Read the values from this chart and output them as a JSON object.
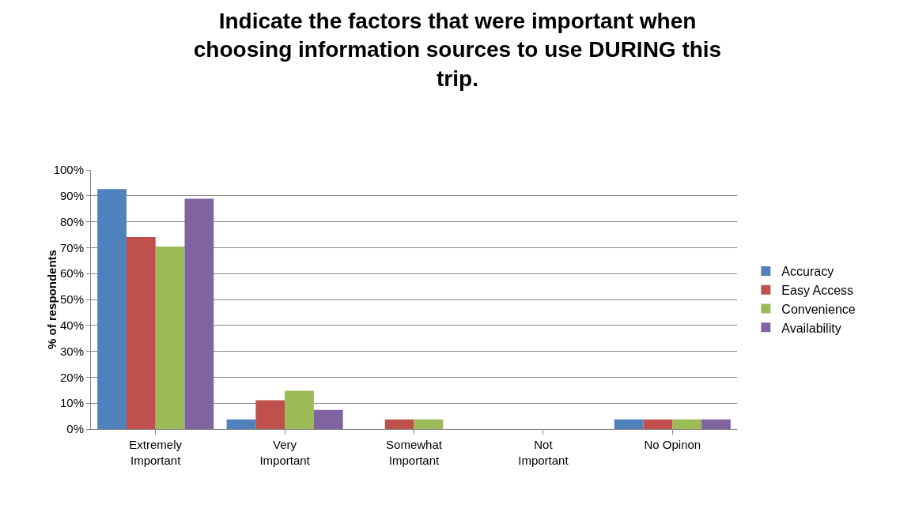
{
  "chart_data": {
    "type": "bar",
    "title": "Indicate the factors that were important when choosing information sources to use DURING this trip.",
    "ylabel": "% of respondents",
    "categories": [
      "Extremely Important",
      "Very Important",
      "Somewhat Important",
      "Not Important",
      "No Opinon"
    ],
    "series": [
      {
        "name": "Accuracy",
        "color": "#4f81bd",
        "values": [
          92.6,
          3.7,
          0,
          0,
          3.7
        ]
      },
      {
        "name": "Easy Access",
        "color": "#c0504d",
        "values": [
          74.1,
          11.1,
          3.7,
          0,
          3.7
        ]
      },
      {
        "name": "Convenience",
        "color": "#9bbb59",
        "values": [
          70.4,
          14.8,
          3.7,
          0,
          3.7
        ]
      },
      {
        "name": "Availability",
        "color": "#8064a2",
        "values": [
          88.9,
          7.4,
          0,
          0,
          3.7
        ]
      }
    ],
    "ylim": [
      0,
      100
    ],
    "yticks": [
      {
        "value": 0,
        "label": "0%"
      },
      {
        "value": 10,
        "label": "10%"
      },
      {
        "value": 20,
        "label": "20%"
      },
      {
        "value": 30,
        "label": "30%"
      },
      {
        "value": 40,
        "label": "40%"
      },
      {
        "value": 50,
        "label": "50%"
      },
      {
        "value": 60,
        "label": "60%"
      },
      {
        "value": 70,
        "label": "70%"
      },
      {
        "value": 80,
        "label": "80%"
      },
      {
        "value": 90,
        "label": "90%"
      },
      {
        "value": 100,
        "label": "100%"
      }
    ],
    "grid": "y",
    "legend": "right"
  }
}
